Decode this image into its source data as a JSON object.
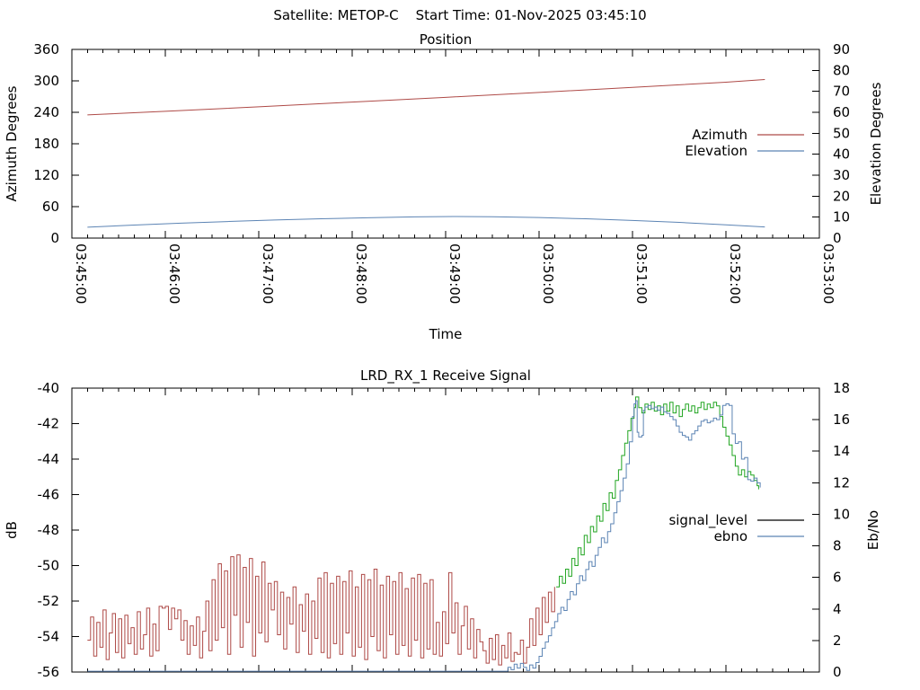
{
  "header": {
    "title": "Satellite: METOP-C    Start Time: 01-Nov-2025 03:45:10"
  },
  "chart_data": [
    {
      "id": "position",
      "type": "line",
      "title": "Position",
      "xlabel": "Time",
      "ylabel_left": "Azimuth Degrees",
      "ylabel_right": "Elevation Degrees",
      "x_axis": {
        "range_seconds": [
          0,
          480
        ],
        "major_step_seconds": 60,
        "minor_step_seconds": 10,
        "labels_visible": true,
        "label_rotation_deg": 90,
        "tick_labels": [
          "03:45:00",
          "03:46:00",
          "03:47:00",
          "03:48:00",
          "03:49:00",
          "03:50:00",
          "03:51:00",
          "03:52:00",
          "03:53:00"
        ]
      },
      "y_left": {
        "min": 0,
        "max": 360,
        "step": 60
      },
      "y_right": {
        "min": 0,
        "max": 90,
        "step": 10
      },
      "legend": [
        {
          "label": "Azimuth",
          "color": "#ae4a47"
        },
        {
          "label": "Elevation",
          "color": "#5c84b4"
        }
      ],
      "series": [
        {
          "name": "azimuth",
          "axis": "left",
          "color": "#ae4a47",
          "interp": "linear",
          "points": [
            [
              10,
              235
            ],
            [
              60,
              242
            ],
            [
              120,
              250.5
            ],
            [
              180,
              259.5
            ],
            [
              240,
              268.5
            ],
            [
              300,
              278
            ],
            [
              360,
              287.5
            ],
            [
              420,
              297.5
            ],
            [
              445,
              302.5
            ]
          ]
        },
        {
          "name": "elevation",
          "axis": "right",
          "color": "#5c84b4",
          "interp": "linear",
          "points": [
            [
              10,
              5.2
            ],
            [
              40,
              6.2
            ],
            [
              70,
              7.1
            ],
            [
              100,
              7.9
            ],
            [
              130,
              8.6
            ],
            [
              160,
              9.2
            ],
            [
              190,
              9.7
            ],
            [
              220,
              10.1
            ],
            [
              245,
              10.3
            ],
            [
              270,
              10.2
            ],
            [
              300,
              9.8
            ],
            [
              330,
              9.2
            ],
            [
              360,
              8.4
            ],
            [
              390,
              7.5
            ],
            [
              420,
              6.3
            ],
            [
              445,
              5.3
            ]
          ]
        }
      ]
    },
    {
      "id": "receive_signal",
      "type": "line",
      "title": "LRD_RX_1 Receive Signal",
      "xlabel": "",
      "ylabel_left": "dB",
      "ylabel_right": "Eb/No",
      "x_axis": {
        "range_seconds": [
          0,
          480
        ],
        "major_step_seconds": 60,
        "minor_step_seconds": 10,
        "labels_visible": false,
        "tick_labels": []
      },
      "y_left": {
        "min": -56,
        "max": -40,
        "step": 2
      },
      "y_right": {
        "min": 0,
        "max": 18,
        "step": 2
      },
      "legend": [
        {
          "label": "signal_level",
          "color": "#000000"
        },
        {
          "label": "ebno",
          "color": "#5c84b4"
        }
      ],
      "series": [
        {
          "name": "signal_level_noise",
          "axis": "left",
          "color": "#ae4a47",
          "interp": "step",
          "t0": 10,
          "dt": 2,
          "values": [
            -54.2,
            -52.9,
            -55.1,
            -53.2,
            -54.6,
            -52.5,
            -55.3,
            -53.8,
            -52.7,
            -54.9,
            -53.0,
            -55.2,
            -52.8,
            -54.4,
            -53.5,
            -55.0,
            -52.6,
            -54.7,
            -53.9,
            -52.4,
            -55.1,
            -53.3,
            -54.8,
            -52.3,
            -52.4,
            -52.3,
            -53.6,
            -52.4,
            -53.0,
            -52.5,
            -54.2,
            -53.1,
            -55.0,
            -53.4,
            -54.5,
            -52.9,
            -55.2,
            -53.7,
            -52.0,
            -54.8,
            -50.8,
            -54.2,
            -49.9,
            -53.5,
            -50.3,
            -55.0,
            -49.5,
            -52.8,
            -49.4,
            -54.6,
            -50.1,
            -53.2,
            -49.6,
            -55.1,
            -50.6,
            -53.8,
            -49.8,
            -54.3,
            -51.0,
            -52.5,
            -50.9,
            -53.9,
            -51.5,
            -54.7,
            -51.8,
            -53.3,
            -51.2,
            -54.9,
            -52.2,
            -53.7,
            -51.6,
            -55.0,
            -52.0,
            -54.1,
            -50.7,
            -54.9,
            -50.4,
            -55.2,
            -51.0,
            -54.4,
            -50.6,
            -55.0,
            -50.9,
            -53.8,
            -50.3,
            -55.1,
            -51.2,
            -54.6,
            -50.5,
            -55.3,
            -50.8,
            -54.0,
            -50.2,
            -54.8,
            -51.1,
            -55.2,
            -50.6,
            -53.9,
            -50.9,
            -55.0,
            -50.4,
            -54.5,
            -51.3,
            -55.1,
            -50.7,
            -54.2,
            -50.5,
            -55.2,
            -51.0,
            -54.7,
            -50.8,
            -55.0,
            -53.2,
            -55.1,
            -52.6,
            -54.4,
            -50.4,
            -53.8,
            -52.1,
            -55.0,
            -53.4,
            -52.3,
            -54.7,
            -53.0,
            -55.2,
            -53.6,
            -54.3,
            -54.8,
            -55.5,
            -54.1,
            -55.3,
            -53.9,
            -55.6,
            -54.5,
            -55.2,
            -53.8,
            -55.4,
            -54.9,
            -55.0,
            -54.2,
            -55.5,
            -54.6,
            -53.0,
            -54.5,
            -52.4,
            -53.9,
            -51.8,
            -53.2,
            -51.5,
            -52.6,
            -51.2
          ]
        },
        {
          "name": "signal_level_locked",
          "axis": "left",
          "color": "#21a521",
          "interp": "step",
          "points": [
            [
              311,
              -51.2
            ],
            [
              313,
              -50.6
            ],
            [
              315,
              -51.0
            ],
            [
              317,
              -50.2
            ],
            [
              319,
              -50.6
            ],
            [
              321,
              -49.6
            ],
            [
              323,
              -50.0
            ],
            [
              325,
              -49.0
            ],
            [
              327,
              -49.4
            ],
            [
              329,
              -48.3
            ],
            [
              331,
              -48.7
            ],
            [
              333,
              -47.8
            ],
            [
              335,
              -48.1
            ],
            [
              337,
              -47.2
            ],
            [
              339,
              -47.5
            ],
            [
              341,
              -46.5
            ],
            [
              343,
              -46.9
            ],
            [
              345,
              -45.9
            ],
            [
              347,
              -46.2
            ],
            [
              349,
              -45.2
            ],
            [
              351,
              -44.6
            ],
            [
              353,
              -43.8
            ],
            [
              355,
              -43.1
            ],
            [
              357,
              -42.4
            ],
            [
              359,
              -41.7
            ],
            [
              361,
              -41.1
            ],
            [
              362,
              -40.5
            ],
            [
              364,
              -41.1
            ],
            [
              366,
              -41.4
            ],
            [
              368,
              -40.9
            ],
            [
              370,
              -41.2
            ],
            [
              372,
              -40.8
            ],
            [
              374,
              -41.3
            ],
            [
              376,
              -41.0
            ],
            [
              378,
              -41.5
            ],
            [
              380,
              -40.9
            ],
            [
              382,
              -41.3
            ],
            [
              384,
              -40.8
            ],
            [
              386,
              -41.4
            ],
            [
              388,
              -41.0
            ],
            [
              390,
              -41.6
            ],
            [
              392,
              -41.2
            ],
            [
              394,
              -40.9
            ],
            [
              396,
              -41.3
            ],
            [
              398,
              -41.0
            ],
            [
              400,
              -41.4
            ],
            [
              402,
              -41.1
            ],
            [
              404,
              -40.8
            ],
            [
              406,
              -41.2
            ],
            [
              408,
              -40.9
            ],
            [
              410,
              -41.1
            ],
            [
              412,
              -40.8
            ],
            [
              414,
              -41.0
            ],
            [
              416,
              -41.6
            ],
            [
              418,
              -42.2
            ],
            [
              420,
              -42.7
            ],
            [
              422,
              -43.2
            ],
            [
              424,
              -43.8
            ],
            [
              426,
              -44.4
            ],
            [
              428,
              -44.9
            ],
            [
              430,
              -44.6
            ],
            [
              432,
              -45.0
            ],
            [
              434,
              -44.7
            ],
            [
              436,
              -44.9
            ],
            [
              438,
              -45.2
            ],
            [
              440,
              -45.5
            ],
            [
              441,
              -45.7
            ]
          ]
        },
        {
          "name": "ebno",
          "axis": "right",
          "color": "#5c84b4",
          "interp": "step",
          "points": [
            [
              10,
              0.05
            ],
            [
              278,
              0.05
            ],
            [
              280,
              0.3
            ],
            [
              282,
              0.15
            ],
            [
              284,
              0.5
            ],
            [
              286,
              0.25
            ],
            [
              288,
              0.55
            ],
            [
              290,
              0.3
            ],
            [
              292,
              0.1
            ],
            [
              294,
              0.45
            ],
            [
              296,
              0.25
            ],
            [
              298,
              0.6
            ],
            [
              300,
              1.0
            ],
            [
              302,
              1.5
            ],
            [
              304,
              1.9
            ],
            [
              306,
              2.3
            ],
            [
              308,
              2.8
            ],
            [
              310,
              3.2
            ],
            [
              312,
              3.7
            ],
            [
              314,
              4.1
            ],
            [
              316,
              3.9
            ],
            [
              318,
              4.6
            ],
            [
              320,
              5.1
            ],
            [
              322,
              4.9
            ],
            [
              324,
              5.6
            ],
            [
              326,
              6.1
            ],
            [
              328,
              5.8
            ],
            [
              330,
              6.5
            ],
            [
              332,
              7.0
            ],
            [
              334,
              6.7
            ],
            [
              336,
              7.4
            ],
            [
              338,
              7.9
            ],
            [
              340,
              8.5
            ],
            [
              342,
              8.2
            ],
            [
              344,
              8.9
            ],
            [
              346,
              9.4
            ],
            [
              348,
              10.1
            ],
            [
              350,
              10.8
            ],
            [
              352,
              11.5
            ],
            [
              354,
              12.3
            ],
            [
              356,
              13.2
            ],
            [
              358,
              14.6
            ],
            [
              360,
              16.2
            ],
            [
              361,
              17.0
            ],
            [
              362,
              17.2
            ],
            [
              363,
              15.2
            ],
            [
              364,
              14.9
            ],
            [
              366,
              15.0
            ],
            [
              367,
              16.6
            ],
            [
              368,
              16.8
            ],
            [
              370,
              16.9
            ],
            [
              372,
              16.7
            ],
            [
              374,
              16.8
            ],
            [
              376,
              16.6
            ],
            [
              378,
              16.8
            ],
            [
              380,
              16.5
            ],
            [
              382,
              16.4
            ],
            [
              384,
              16.2
            ],
            [
              386,
              16.0
            ],
            [
              388,
              15.6
            ],
            [
              390,
              15.2
            ],
            [
              392,
              15.0
            ],
            [
              394,
              14.9
            ],
            [
              396,
              14.7
            ],
            [
              398,
              15.1
            ],
            [
              400,
              15.3
            ],
            [
              402,
              15.6
            ],
            [
              404,
              15.9
            ],
            [
              406,
              16.0
            ],
            [
              408,
              15.8
            ],
            [
              410,
              15.9
            ],
            [
              412,
              16.1
            ],
            [
              414,
              16.0
            ],
            [
              416,
              16.3
            ],
            [
              418,
              16.9
            ],
            [
              420,
              17.0
            ],
            [
              422,
              16.9
            ],
            [
              424,
              15.1
            ],
            [
              426,
              14.5
            ],
            [
              428,
              14.6
            ],
            [
              430,
              13.5
            ],
            [
              432,
              13.6
            ],
            [
              434,
              12.2
            ],
            [
              436,
              12.1
            ],
            [
              438,
              12.3
            ],
            [
              440,
              12.0
            ],
            [
              442,
              11.7
            ]
          ]
        }
      ]
    }
  ]
}
